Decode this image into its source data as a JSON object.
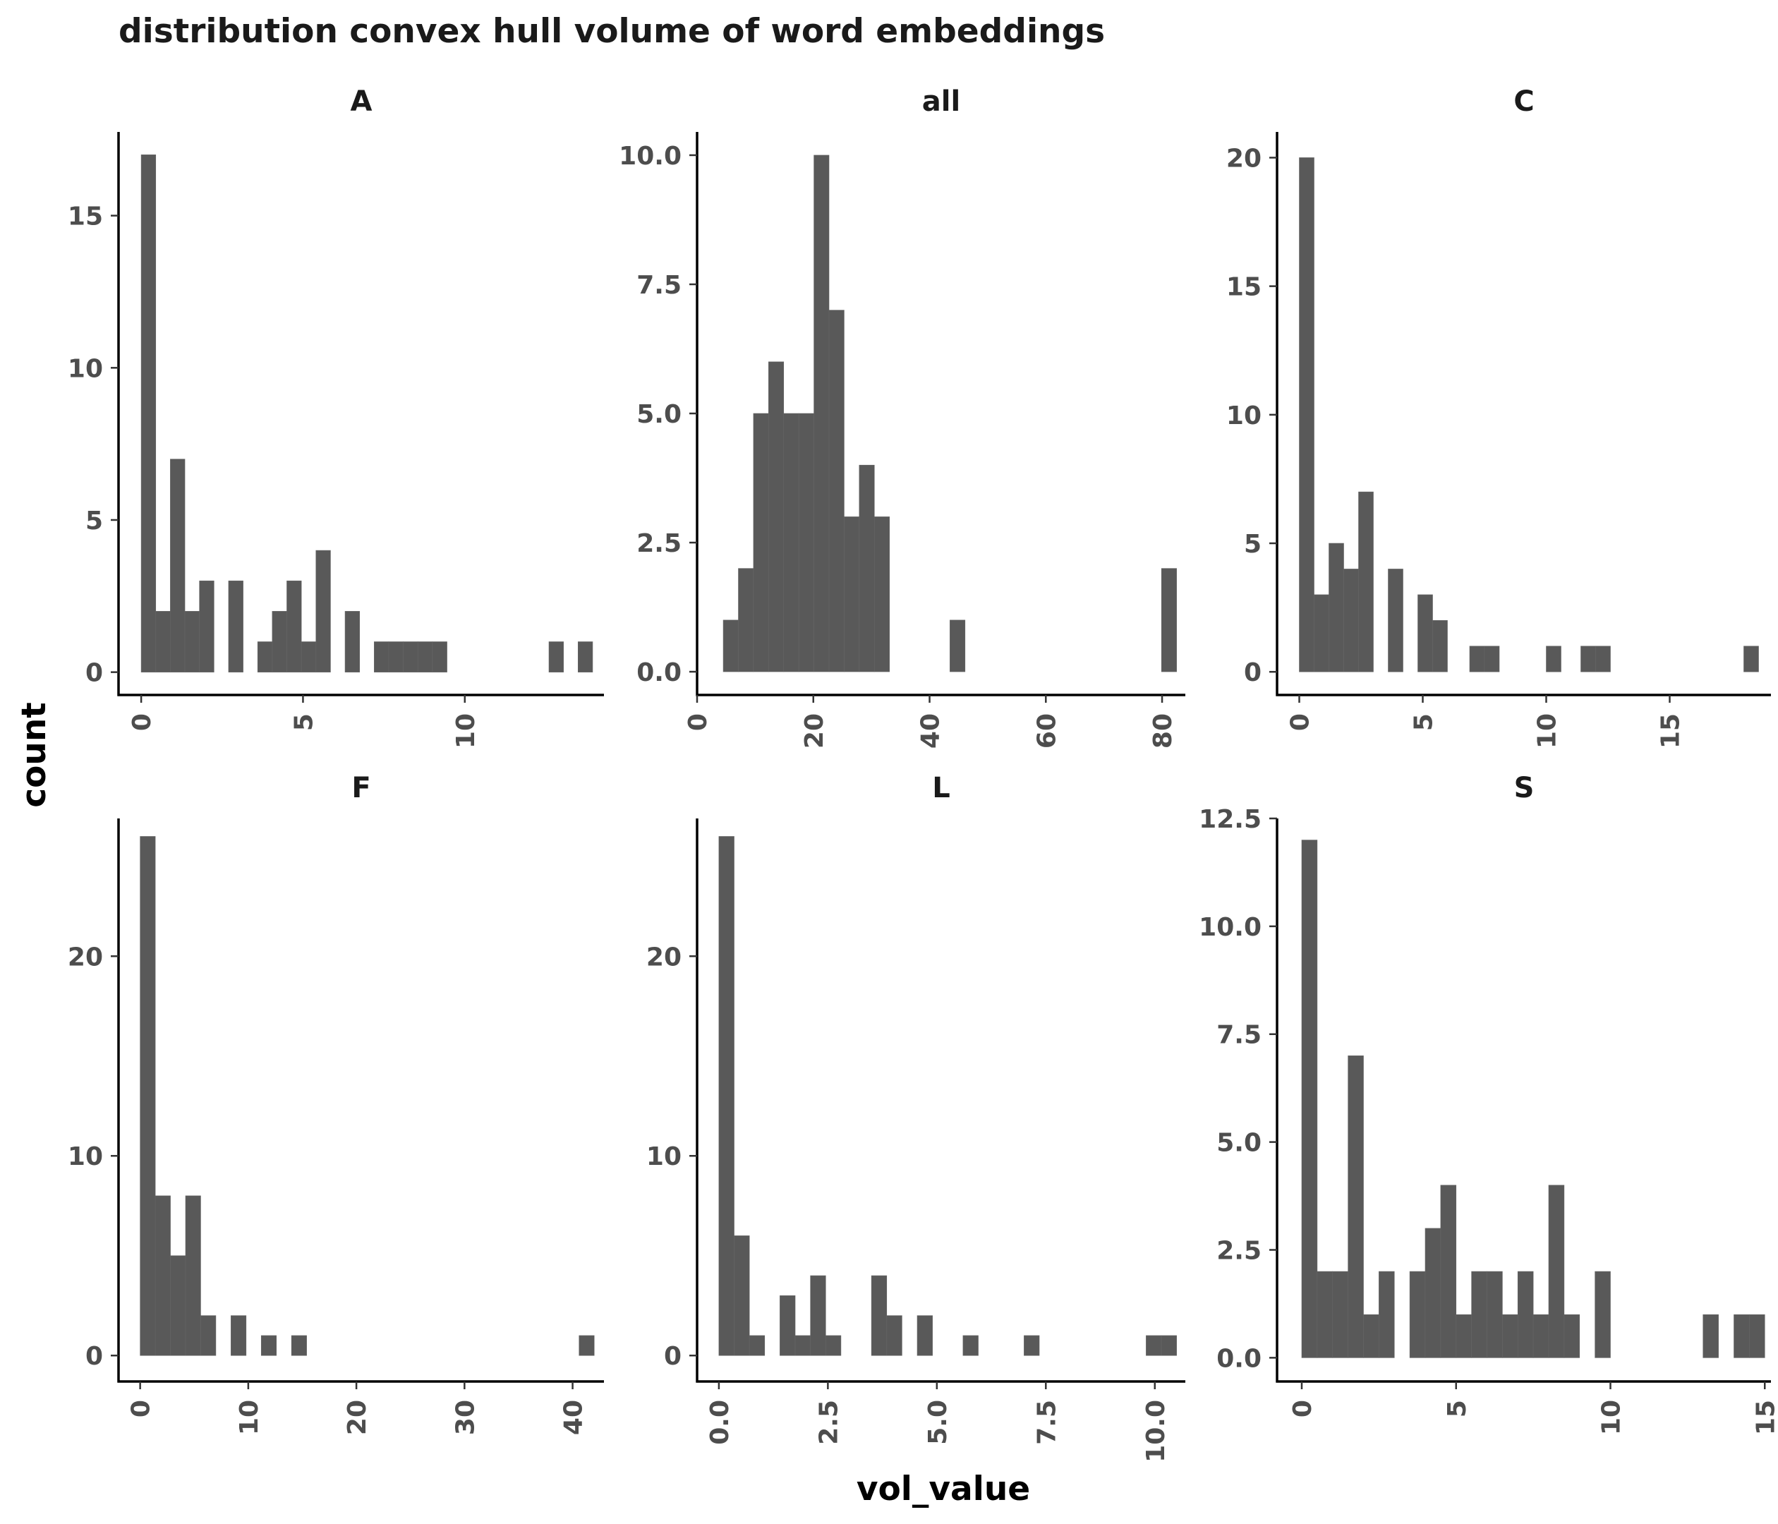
{
  "title": "distribution convex hull volume of word embeddings",
  "xlabel": "vol_value",
  "ylabel": "count",
  "colors": {
    "bar": "#595959",
    "axis": "#000000",
    "tick_text": "#4d4d4d",
    "title": "#1a1a1a"
  },
  "chart_data": [
    {
      "type": "bar",
      "title": "A",
      "xlim": [
        -0.7,
        14.3
      ],
      "ylim": [
        -0.75,
        17.75
      ],
      "xticks": [
        0,
        5,
        10
      ],
      "xticklabels": [
        "0",
        "5",
        "10"
      ],
      "yticks": [
        0,
        5,
        10,
        15
      ],
      "yticklabels": [
        "0",
        "5",
        "10",
        "15"
      ],
      "bin_width": 0.45,
      "bins": [
        [
          0.0,
          17
        ],
        [
          0.45,
          2
        ],
        [
          0.9,
          7
        ],
        [
          1.35,
          2
        ],
        [
          1.8,
          3
        ],
        [
          2.7,
          3
        ],
        [
          3.6,
          1
        ],
        [
          4.05,
          2
        ],
        [
          4.5,
          3
        ],
        [
          4.95,
          1
        ],
        [
          5.4,
          4
        ],
        [
          6.3,
          2
        ],
        [
          7.2,
          1
        ],
        [
          7.65,
          1
        ],
        [
          8.1,
          1
        ],
        [
          8.55,
          1
        ],
        [
          9.0,
          1
        ],
        [
          12.6,
          1
        ],
        [
          13.5,
          1
        ]
      ]
    },
    {
      "type": "bar",
      "title": "all",
      "xlim": [
        0,
        84
      ],
      "ylim": [
        -0.45,
        10.45
      ],
      "xticks": [
        0,
        20,
        40,
        60,
        80
      ],
      "xticklabels": [
        "0",
        "20",
        "40",
        "60",
        "80"
      ],
      "yticks": [
        0,
        2.5,
        5,
        7.5,
        10
      ],
      "yticklabels": [
        "0.0",
        "2.5",
        "5.0",
        "7.5",
        "10.0"
      ],
      "bin_width": 2.6,
      "bins": [
        [
          4.5,
          1
        ],
        [
          7.1,
          2
        ],
        [
          9.7,
          5
        ],
        [
          12.3,
          6
        ],
        [
          14.9,
          5
        ],
        [
          17.5,
          5
        ],
        [
          20.1,
          10
        ],
        [
          22.7,
          7
        ],
        [
          25.3,
          3
        ],
        [
          27.9,
          4
        ],
        [
          30.5,
          3
        ],
        [
          43.5,
          1
        ],
        [
          79.9,
          2
        ]
      ]
    },
    {
      "type": "bar",
      "title": "C",
      "xlim": [
        -0.9,
        19.1
      ],
      "ylim": [
        -0.9,
        21.0
      ],
      "xticks": [
        0,
        5,
        10,
        15
      ],
      "xticklabels": [
        "0",
        "5",
        "10",
        "15"
      ],
      "yticks": [
        0,
        5,
        10,
        15,
        20
      ],
      "yticklabels": [
        "0",
        "5",
        "10",
        "15",
        "20"
      ],
      "bin_width": 0.6,
      "bins": [
        [
          0.0,
          20
        ],
        [
          0.6,
          3
        ],
        [
          1.2,
          5
        ],
        [
          1.8,
          4
        ],
        [
          2.4,
          7
        ],
        [
          3.6,
          4
        ],
        [
          4.8,
          3
        ],
        [
          5.4,
          2
        ],
        [
          6.9,
          1
        ],
        [
          7.5,
          1
        ],
        [
          10.0,
          1
        ],
        [
          11.4,
          1
        ],
        [
          12.0,
          1
        ],
        [
          18.0,
          1
        ]
      ]
    },
    {
      "type": "bar",
      "title": "F",
      "xlim": [
        -2.0,
        42.9
      ],
      "ylim": [
        -1.3,
        26.9
      ],
      "xticks": [
        0,
        10,
        20,
        30,
        40
      ],
      "xticklabels": [
        "0",
        "10",
        "20",
        "30",
        "40"
      ],
      "yticks": [
        0,
        10,
        20
      ],
      "yticklabels": [
        "0",
        "10",
        "20"
      ],
      "bin_width": 1.4,
      "bins": [
        [
          0.0,
          26
        ],
        [
          1.4,
          8
        ],
        [
          2.8,
          5
        ],
        [
          4.2,
          8
        ],
        [
          5.6,
          2
        ],
        [
          8.4,
          2
        ],
        [
          11.2,
          1
        ],
        [
          14.0,
          1
        ],
        [
          40.6,
          1
        ]
      ]
    },
    {
      "type": "bar",
      "title": "L",
      "xlim": [
        -0.5,
        10.7
      ],
      "ylim": [
        -1.3,
        26.9
      ],
      "xticks": [
        0,
        2.5,
        5,
        7.5,
        10
      ],
      "xticklabels": [
        "0.0",
        "2.5",
        "5.0",
        "7.5",
        "10.0"
      ],
      "yticks": [
        0,
        10,
        20
      ],
      "yticklabels": [
        "0",
        "10",
        "20"
      ],
      "bin_width": 0.35,
      "bins": [
        [
          0.0,
          26
        ],
        [
          0.35,
          6
        ],
        [
          0.7,
          1
        ],
        [
          1.4,
          3
        ],
        [
          1.75,
          1
        ],
        [
          2.1,
          4
        ],
        [
          2.45,
          1
        ],
        [
          3.5,
          4
        ],
        [
          3.85,
          2
        ],
        [
          4.55,
          2
        ],
        [
          5.6,
          1
        ],
        [
          7.0,
          1
        ],
        [
          9.8,
          1
        ],
        [
          10.15,
          1
        ]
      ]
    },
    {
      "type": "bar",
      "title": "S",
      "xlim": [
        -0.8,
        15.2
      ],
      "ylim": [
        -0.55,
        12.5
      ],
      "xticks": [
        0,
        5,
        10,
        15
      ],
      "xticklabels": [
        "0",
        "5",
        "10",
        "15"
      ],
      "yticks": [
        0,
        2.5,
        5,
        7.5,
        10,
        12.5
      ],
      "yticklabels": [
        "0.0",
        "2.5",
        "5.0",
        "7.5",
        "10.0",
        "12.5"
      ],
      "bin_width": 0.5,
      "bins": [
        [
          0.0,
          12
        ],
        [
          0.5,
          2
        ],
        [
          1.0,
          2
        ],
        [
          1.5,
          7
        ],
        [
          2.0,
          1
        ],
        [
          2.5,
          2
        ],
        [
          3.5,
          2
        ],
        [
          4.0,
          3
        ],
        [
          4.5,
          4
        ],
        [
          5.0,
          1
        ],
        [
          5.5,
          2
        ],
        [
          6.0,
          2
        ],
        [
          6.5,
          1
        ],
        [
          7.0,
          2
        ],
        [
          7.5,
          1
        ],
        [
          8.0,
          4
        ],
        [
          8.5,
          1
        ],
        [
          9.5,
          2
        ],
        [
          13.0,
          1
        ],
        [
          14.0,
          1
        ],
        [
          14.5,
          1
        ]
      ]
    }
  ]
}
